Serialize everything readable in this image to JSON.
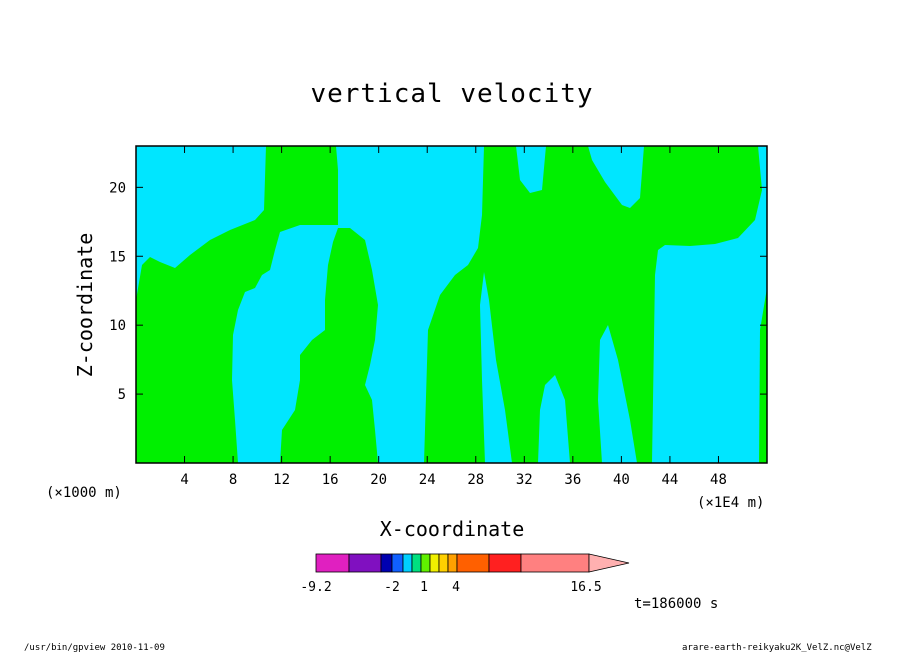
{
  "chart_data": {
    "type": "contour",
    "title": "vertical velocity",
    "xlabel": "X-coordinate",
    "ylabel": "Z-coordinate",
    "xlim": [
      0,
      52
    ],
    "ylim": [
      0,
      23
    ],
    "x_ticks": [
      "4",
      "8",
      "12",
      "16",
      "20",
      "24",
      "28",
      "32",
      "36",
      "40",
      "44",
      "48"
    ],
    "y_ticks": [
      "5",
      "10",
      "15",
      "20"
    ],
    "x_unit_left": "(×1000 m)",
    "x_unit_right": "(×1E4 m)",
    "background_color": "#00e6ff",
    "positive_region_color": "#00f000",
    "colorbar": {
      "colors": [
        "#e020c0",
        "#8010c0",
        "#0000b0",
        "#1060ff",
        "#00d0ff",
        "#00e080",
        "#60f000",
        "#f0f000",
        "#ffd000",
        "#ffa000",
        "#ff6000",
        "#ff2020",
        "#ff8080",
        "#ffb0b0"
      ],
      "labels": [
        "-9.2",
        "-2",
        "1",
        "4",
        "16.5"
      ]
    },
    "time_label": "t=186000 s",
    "footer_left": "/usr/bin/gpview  2010-11-09",
    "footer_right": "arare-earth-reikyaku2K_VelZ.nc@VelZ"
  }
}
